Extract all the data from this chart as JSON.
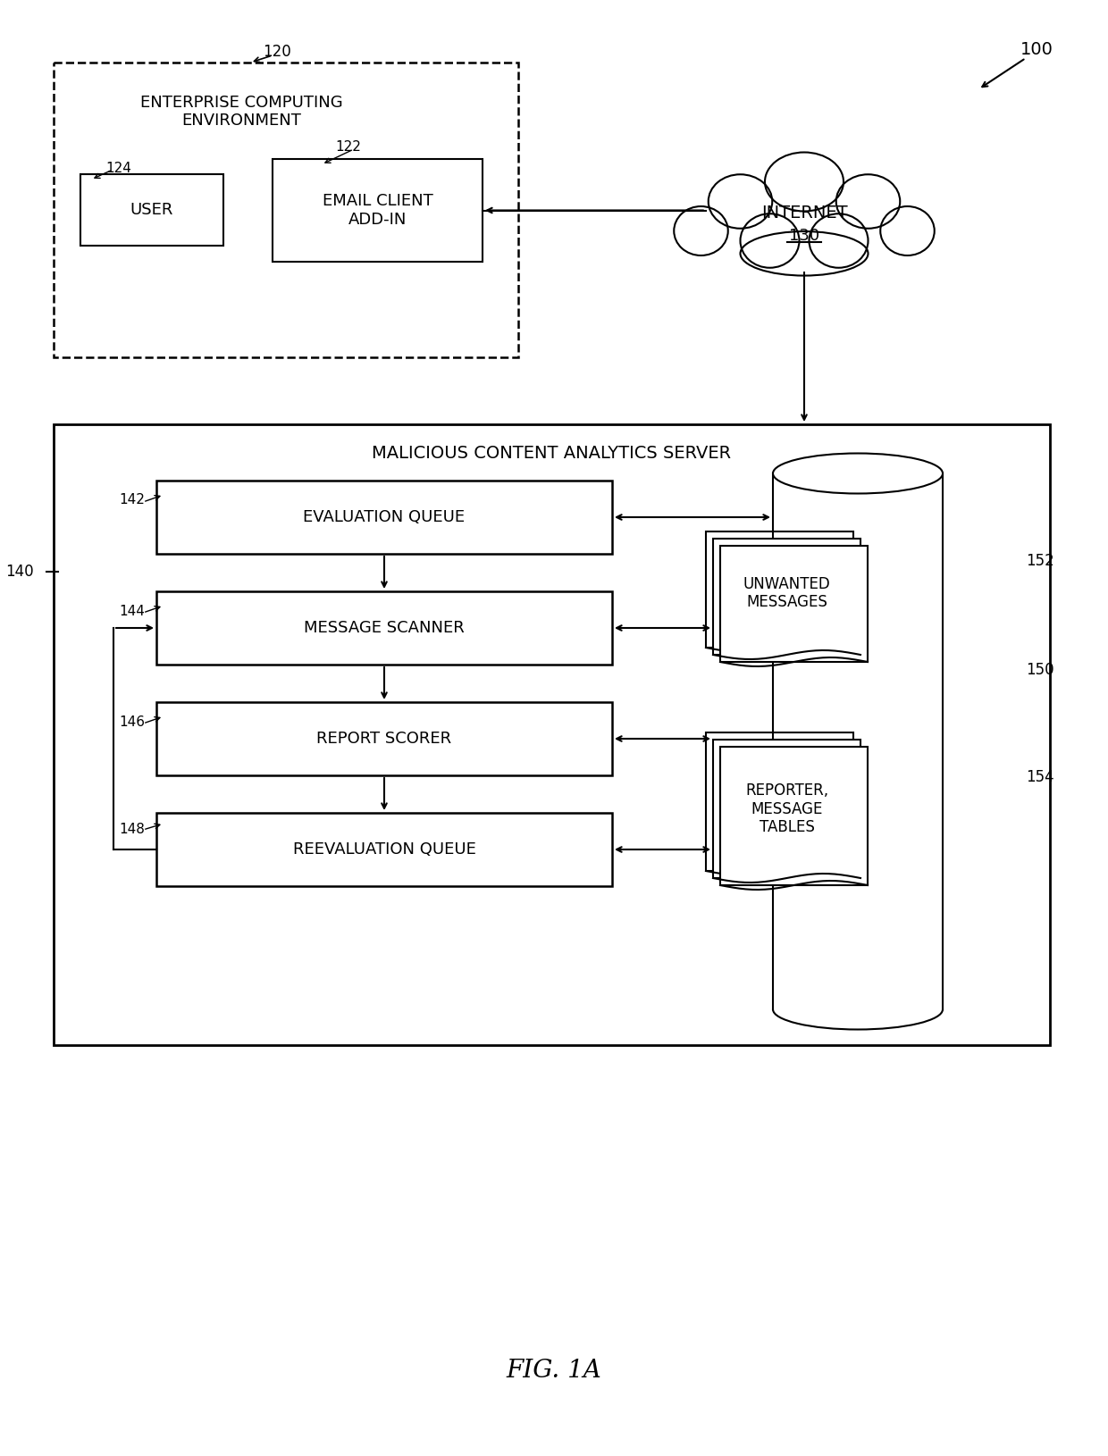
{
  "bg_color": "#ffffff",
  "line_color": "#000000",
  "fig_label": "FIG. 1A",
  "ref_100": "100",
  "ref_120": "120",
  "ref_122": "122",
  "ref_124": "124",
  "ref_130": "130",
  "ref_140": "140",
  "ref_142": "142",
  "ref_144": "144",
  "ref_146": "146",
  "ref_148": "148",
  "ref_150": "150",
  "ref_152": "152",
  "ref_154": "154",
  "ece_label": "ENTERPRISE COMPUTING\nENVIRONMENT",
  "user_label": "USER",
  "email_label": "EMAIL CLIENT\nADD-IN",
  "internet_label": "INTERNET",
  "server_label": "MALICIOUS CONTENT ANALYTICS SERVER",
  "eq_label": "EVALUATION QUEUE",
  "ms_label": "MESSAGE SCANNER",
  "rs_label": "REPORT SCORER",
  "rq_label": "REEVALUATION QUEUE",
  "unwanted_label": "UNWANTED\nMESSAGES",
  "reporter_label": "REPORTER,\nMESSAGE\nTABLES"
}
